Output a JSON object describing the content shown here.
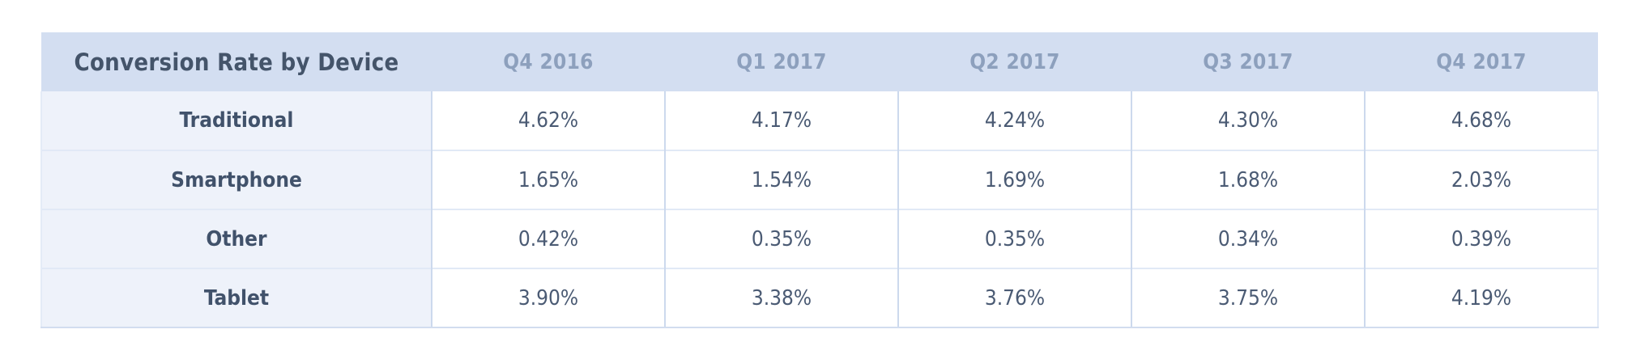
{
  "table": {
    "title": "Conversion Rate by Device",
    "columns": [
      "Q4 2016",
      "Q1 2017",
      "Q2 2017",
      "Q3 2017",
      "Q4 2017"
    ],
    "rows": [
      {
        "label": "Traditional",
        "values": [
          "4.62%",
          "4.17%",
          "4.24%",
          "4.30%",
          "4.68%"
        ]
      },
      {
        "label": "Smartphone",
        "values": [
          "1.65%",
          "1.54%",
          "1.69%",
          "1.68%",
          "2.03%"
        ]
      },
      {
        "label": "Other",
        "values": [
          "0.42%",
          "0.35%",
          "0.35%",
          "0.34%",
          "0.39%"
        ]
      },
      {
        "label": "Tablet",
        "values": [
          "3.90%",
          "3.38%",
          "3.76%",
          "3.75%",
          "4.19%"
        ]
      }
    ],
    "colors": {
      "header_bg": "#d3def1",
      "label_column_bg": "#eef2fa",
      "title_text": "#44546a",
      "column_header_text": "#8da0bd",
      "row_label_text": "#41526b",
      "value_text": "#4b5b74",
      "vertical_border": "#ccd9ed",
      "horizontal_border": "#e1e9f6"
    }
  },
  "chart_data": {
    "type": "table",
    "title": "Conversion Rate by Device",
    "columns": [
      "Q4 2016",
      "Q1 2017",
      "Q2 2017",
      "Q3 2017",
      "Q4 2017"
    ],
    "row_labels": [
      "Traditional",
      "Smartphone",
      "Other",
      "Tablet"
    ],
    "values_percent": [
      [
        4.62,
        4.17,
        4.24,
        4.3,
        4.68
      ],
      [
        1.65,
        1.54,
        1.69,
        1.68,
        2.03
      ],
      [
        0.42,
        0.35,
        0.35,
        0.34,
        0.39
      ],
      [
        3.9,
        3.38,
        3.76,
        3.75,
        4.19
      ]
    ],
    "unit": "%",
    "layout": "rows are device types, columns are quarters, header row shaded blue"
  }
}
